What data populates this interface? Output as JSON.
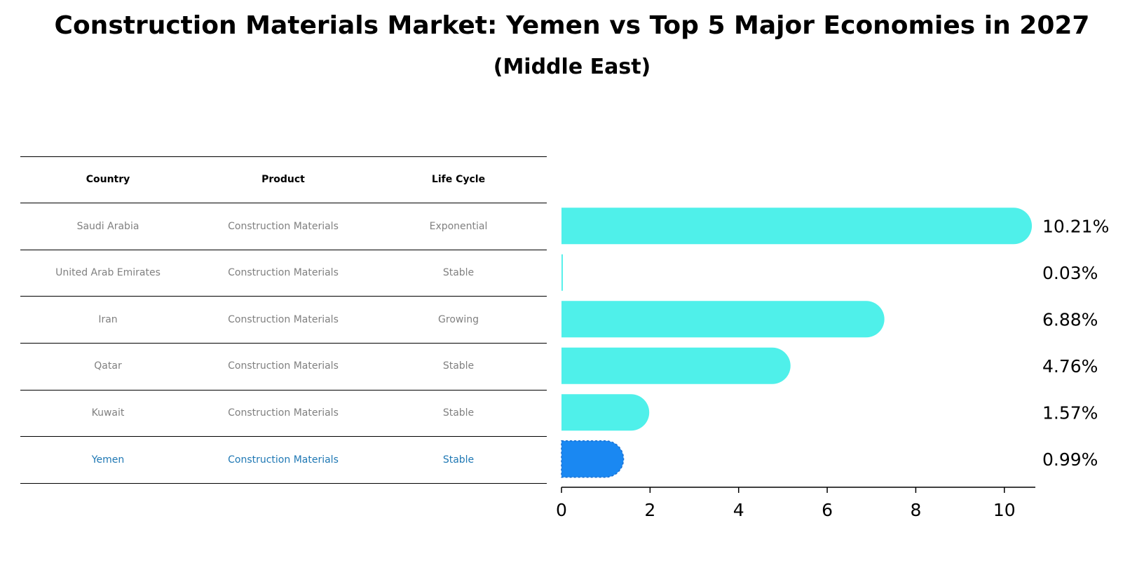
{
  "title": "Construction Materials Market: Yemen vs Top 5 Major Economies in 2027",
  "subtitle": "(Middle East)",
  "table": {
    "headers": [
      "Country",
      "Product",
      "Life Cycle"
    ],
    "rows": [
      {
        "country": "Saudi Arabia",
        "product": "Construction Materials",
        "life_cycle": "Exponential",
        "highlight": false
      },
      {
        "country": "United Arab Emirates",
        "product": "Construction Materials",
        "life_cycle": "Stable",
        "highlight": false
      },
      {
        "country": "Iran",
        "product": "Construction Materials",
        "life_cycle": "Growing",
        "highlight": false
      },
      {
        "country": "Qatar",
        "product": "Construction Materials",
        "life_cycle": "Stable",
        "highlight": false
      },
      {
        "country": "Kuwait",
        "product": "Construction Materials",
        "life_cycle": "Stable",
        "highlight": false
      },
      {
        "country": "Yemen",
        "product": "Construction Materials",
        "life_cycle": "Stable",
        "highlight": true
      }
    ]
  },
  "chart_data": {
    "type": "bar",
    "orientation": "horizontal",
    "categories": [
      "Saudi Arabia",
      "United Arab Emirates",
      "Iran",
      "Qatar",
      "Kuwait",
      "Yemen"
    ],
    "values": [
      10.21,
      0.03,
      6.88,
      4.76,
      1.57,
      0.99
    ],
    "labels": [
      "10.21%",
      "0.03%",
      "6.88%",
      "4.76%",
      "1.57%",
      "0.99%"
    ],
    "highlight_index": 5,
    "xlim": [
      0,
      10.7
    ],
    "xticks": [
      0,
      2,
      4,
      6,
      8,
      10
    ],
    "xlabel": "",
    "ylabel": "",
    "colors": {
      "default": "#4ff0ea",
      "highlight": "#1a88f2"
    }
  }
}
